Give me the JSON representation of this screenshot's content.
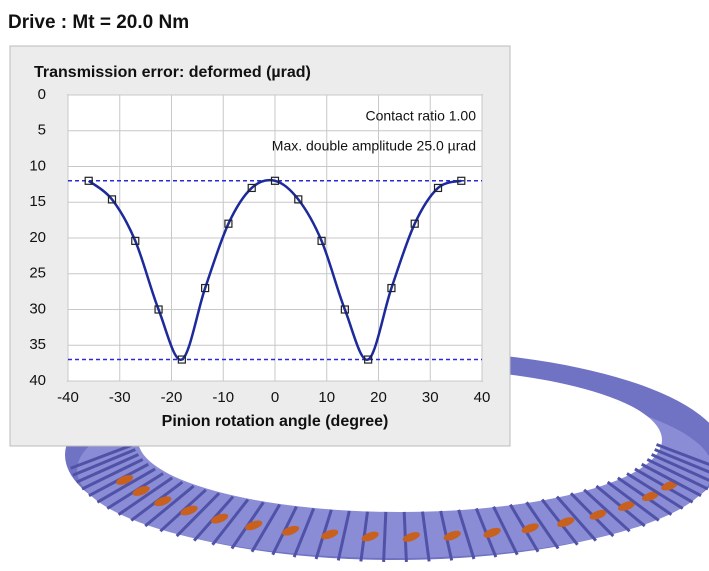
{
  "header": {
    "title": "Drive :  Mt = 20.0 Nm"
  },
  "chart_data": {
    "type": "line",
    "title": "Transmission error: deformed  (µrad)",
    "x_label": "Pinion rotation angle  (degree)",
    "annotations": [
      "Contact ratio  1.00",
      "Max. double amplitude   25.0 µrad"
    ],
    "x": [
      -36,
      -31.5,
      -27,
      -22.5,
      -18,
      -13.5,
      -9,
      -4.5,
      0,
      4.5,
      9,
      13.5,
      18,
      22.5,
      27,
      31.5,
      36
    ],
    "series": [
      {
        "color": "#1c2a9c",
        "values": [
          12,
          14.6,
          20.4,
          30,
          37,
          27,
          18,
          13,
          12,
          14.6,
          20.4,
          30,
          37,
          27,
          18,
          13,
          12
        ]
      }
    ],
    "reference_lines": [
      12,
      37
    ],
    "reference_color": "#2a2ad6",
    "xlim": [
      -40,
      40
    ],
    "xticks": [
      -40,
      -30,
      -20,
      -10,
      0,
      10,
      20,
      30,
      40
    ],
    "ylim": [
      0,
      40
    ],
    "yticks": [
      0,
      5,
      10,
      15,
      20,
      25,
      30,
      35,
      40
    ],
    "y_inverted": true,
    "grid": true
  }
}
